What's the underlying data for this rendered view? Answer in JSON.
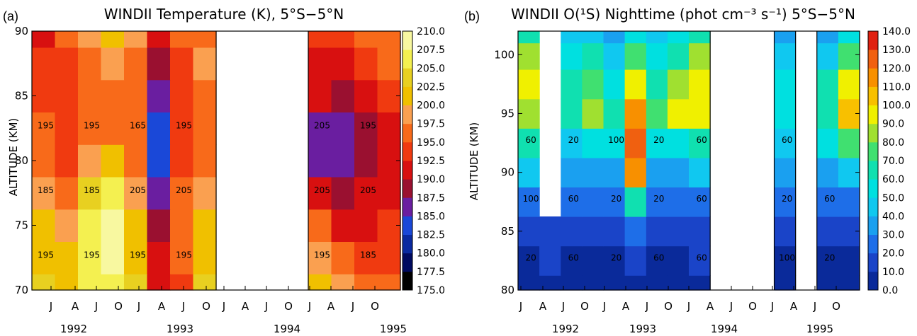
{
  "chart_data": [
    {
      "type": "heatmap",
      "panel_label": "(a)",
      "title": "WINDII Temperature (K), 5°S−5°N",
      "ylabel": "ALTITUDE (KM)",
      "ylim": [
        70,
        90
      ],
      "yticks": [
        "70",
        "75",
        "80",
        "85",
        "90"
      ],
      "xtick_labels": [
        "J",
        "A",
        "J",
        "O",
        "J",
        "A",
        "J",
        "O",
        "J",
        "A",
        "J",
        "O",
        "J",
        "A",
        "J",
        "O"
      ],
      "year_labels": [
        "1992",
        "1993",
        "1994",
        "1995"
      ],
      "colorbar": {
        "levels": [
          "175.0",
          "177.5",
          "180.0",
          "182.5",
          "185.0",
          "187.5",
          "190.0",
          "192.5",
          "195.0",
          "197.5",
          "200.0",
          "202.5",
          "205.0",
          "207.5",
          "210.0"
        ],
        "colors": [
          "#000000",
          "#000a60",
          "#0a2aa0",
          "#1a48d8",
          "#6a1ea0",
          "#9a1030",
          "#d81010",
          "#f03a10",
          "#f86a1a",
          "#faa050",
          "#f0c000",
          "#e8d020",
          "#f4f050",
          "#f8f8a0",
          "#fcfccc"
        ]
      },
      "data_gaps": [
        [
          "1993-J",
          "1995-J"
        ]
      ],
      "contour_labels": [
        "195",
        "195",
        "195",
        "195",
        "195",
        "185",
        "185",
        "185",
        "205",
        "205",
        "205",
        "205",
        "195",
        "195",
        "165",
        "195",
        "205",
        "195"
      ],
      "x_cols": [
        "J92",
        "A92",
        "J92b",
        "O92",
        "J93",
        "A93",
        "J93b",
        "O93",
        "J94",
        "A94",
        "J94b",
        "O94",
        "J95",
        "A95",
        "J95b",
        "O95"
      ],
      "y_levels": [
        70,
        72.5,
        75,
        77.5,
        80,
        82.5,
        85,
        87.5,
        90
      ],
      "values": [
        [
          203,
          201,
          205,
          207,
          203,
          190,
          194,
          203,
          null,
          null,
          null,
          null,
          200,
          198,
          196,
          195
        ],
        [
          202,
          200,
          206,
          208,
          202,
          190,
          195,
          202,
          null,
          null,
          null,
          null,
          198,
          195,
          194,
          194
        ],
        [
          200,
          198,
          205,
          208,
          200,
          188,
          196,
          201,
          null,
          null,
          null,
          null,
          195,
          192,
          192,
          193
        ],
        [
          198,
          196,
          203,
          205,
          199,
          186,
          195,
          199,
          null,
          null,
          null,
          null,
          192,
          189,
          190,
          192
        ],
        [
          196,
          194,
          199,
          200,
          197,
          183,
          194,
          196,
          null,
          null,
          null,
          null,
          187,
          186,
          188,
          191
        ],
        [
          195,
          193,
          196,
          197,
          196,
          183,
          193,
          195,
          null,
          null,
          null,
          null,
          187,
          186,
          189,
          192
        ],
        [
          194,
          193,
          195,
          196,
          196,
          186,
          193,
          196,
          null,
          null,
          null,
          null,
          190,
          188,
          191,
          194
        ],
        [
          193,
          194,
          196,
          198,
          197,
          188,
          194,
          198,
          null,
          null,
          null,
          null,
          192,
          190,
          193,
          196
        ],
        [
          192,
          196,
          199,
          200,
          198,
          190,
          195,
          197,
          null,
          null,
          null,
          null,
          194,
          193,
          195,
          197
        ]
      ]
    },
    {
      "type": "heatmap",
      "panel_label": "(b)",
      "title": "WINDII O(¹S) Nighttime (phot cm⁻³ s⁻¹) 5°S−5°N",
      "ylabel": "ALTITUDE (KM)",
      "ylim": [
        80,
        102
      ],
      "yticks": [
        "80",
        "85",
        "90",
        "95",
        "100"
      ],
      "xtick_labels": [
        "J",
        "A",
        "J",
        "O",
        "J",
        "A",
        "J",
        "O",
        "J",
        "A",
        "J",
        "O",
        "J",
        "A",
        "J",
        "O"
      ],
      "year_labels": [
        "1992",
        "1993",
        "1994",
        "1995"
      ],
      "colorbar": {
        "levels": [
          "0.0",
          "10.0",
          "20.0",
          "30.0",
          "40.0",
          "50.0",
          "60.0",
          "70.0",
          "80.0",
          "90.0",
          "100.0",
          "110.0",
          "120.0",
          "130.0",
          "140.0"
        ],
        "colors": [
          "#0a2a9a",
          "#1a44c8",
          "#1e6ee8",
          "#1aa0f0",
          "#10c8f0",
          "#00e0e0",
          "#10e0b0",
          "#40e070",
          "#a0e030",
          "#f0f000",
          "#f8c000",
          "#f89000",
          "#f06010",
          "#e02010",
          "#c00000"
        ]
      },
      "data_gaps": [
        [
          "1992-A",
          "1992-J"
        ],
        [
          "1994-A",
          "1995-J"
        ],
        [
          "1995-A",
          "1995-J"
        ]
      ],
      "contour_labels": [
        "20",
        "60",
        "20",
        "60",
        "60",
        "100",
        "20",
        "100",
        "60",
        "20",
        "20",
        "60",
        "20",
        "60",
        "60",
        "20",
        "100",
        "20",
        "60",
        "60"
      ],
      "x_cols": [
        "J92",
        "A92",
        "J92b",
        "O92",
        "J93",
        "A93",
        "J93b",
        "O93",
        "J94",
        "A94",
        "J94b",
        "O94",
        "J95",
        "A95",
        "J95b",
        "O95"
      ],
      "y_levels": [
        80,
        82.5,
        85,
        87.5,
        90,
        92.5,
        95,
        97.5,
        100,
        102
      ],
      "values": [
        [
          5,
          8,
          5,
          5,
          5,
          5,
          5,
          5,
          5,
          null,
          null,
          null,
          5,
          null,
          5,
          5
        ],
        [
          8,
          10,
          8,
          8,
          8,
          10,
          8,
          8,
          10,
          null,
          null,
          null,
          8,
          null,
          8,
          8
        ],
        [
          15,
          15,
          12,
          12,
          15,
          20,
          12,
          12,
          15,
          null,
          null,
          null,
          12,
          null,
          12,
          15
        ],
        [
          25,
          null,
          20,
          20,
          25,
          60,
          20,
          20,
          25,
          null,
          null,
          null,
          20,
          null,
          20,
          25
        ],
        [
          40,
          null,
          30,
          35,
          35,
          110,
          30,
          35,
          40,
          null,
          null,
          null,
          30,
          null,
          35,
          40
        ],
        [
          60,
          null,
          45,
          55,
          50,
          120,
          50,
          55,
          65,
          null,
          null,
          null,
          45,
          null,
          55,
          70
        ],
        [
          85,
          null,
          60,
          80,
          60,
          110,
          70,
          90,
          90,
          null,
          null,
          null,
          55,
          null,
          65,
          105
        ],
        [
          95,
          null,
          60,
          75,
          55,
          90,
          60,
          85,
          95,
          null,
          null,
          null,
          50,
          null,
          60,
          95
        ],
        [
          80,
          null,
          50,
          60,
          45,
          70,
          50,
          65,
          80,
          null,
          null,
          null,
          40,
          null,
          45,
          70
        ],
        [
          60,
          null,
          40,
          45,
          35,
          50,
          40,
          50,
          60,
          null,
          null,
          null,
          30,
          null,
          35,
          50
        ]
      ]
    }
  ]
}
